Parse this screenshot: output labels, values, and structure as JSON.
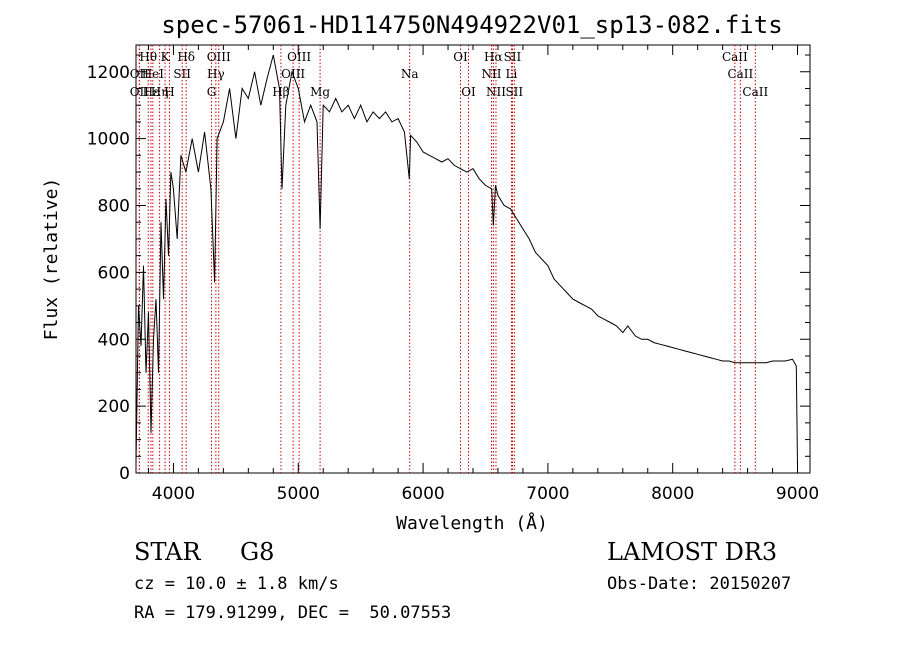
{
  "chart_data": {
    "type": "line",
    "title": "spec-57061-HD114750N494922V01_sp13-082.fits",
    "xlabel": "Wavelength (Å)",
    "ylabel": "Flux (relative)",
    "xlim": [
      3700,
      9100
    ],
    "ylim": [
      0,
      1280
    ],
    "xticks": [
      4000,
      5000,
      6000,
      7000,
      8000,
      9000
    ],
    "yticks": [
      0,
      200,
      400,
      600,
      800,
      1000,
      1200
    ],
    "line_color": "#000000",
    "marker_color": "#cc0000",
    "series": [
      {
        "name": "flux",
        "x": [
          3700,
          3720,
          3740,
          3760,
          3780,
          3800,
          3820,
          3840,
          3860,
          3880,
          3900,
          3920,
          3940,
          3960,
          3980,
          4000,
          4030,
          4060,
          4100,
          4150,
          4200,
          4250,
          4300,
          4330,
          4350,
          4400,
          4450,
          4500,
          4550,
          4600,
          4650,
          4700,
          4750,
          4800,
          4850,
          4870,
          4900,
          4950,
          5000,
          5050,
          5100,
          5150,
          5175,
          5200,
          5250,
          5300,
          5350,
          5400,
          5450,
          5500,
          5550,
          5600,
          5650,
          5700,
          5750,
          5800,
          5850,
          5890,
          5900,
          5950,
          6000,
          6050,
          6100,
          6150,
          6200,
          6250,
          6300,
          6350,
          6400,
          6450,
          6500,
          6550,
          6563,
          6580,
          6600,
          6650,
          6700,
          6750,
          6800,
          6850,
          6900,
          6950,
          7000,
          7050,
          7100,
          7150,
          7200,
          7250,
          7300,
          7350,
          7400,
          7450,
          7500,
          7550,
          7600,
          7640,
          7700,
          7750,
          7800,
          7850,
          7900,
          7950,
          8000,
          8050,
          8100,
          8150,
          8200,
          8250,
          8300,
          8350,
          8400,
          8450,
          8500,
          8550,
          8600,
          8650,
          8700,
          8750,
          8800,
          8850,
          8900,
          8960,
          8990,
          9000
        ],
        "y": [
          30,
          500,
          380,
          620,
          300,
          480,
          120,
          400,
          520,
          300,
          750,
          520,
          820,
          650,
          900,
          850,
          700,
          950,
          900,
          1000,
          900,
          1020,
          850,
          570,
          1000,
          1050,
          1150,
          1000,
          1150,
          1120,
          1200,
          1100,
          1180,
          1250,
          1150,
          850,
          1100,
          1200,
          1150,
          1050,
          1100,
          1050,
          730,
          1100,
          1080,
          1120,
          1080,
          1100,
          1060,
          1100,
          1050,
          1080,
          1060,
          1080,
          1050,
          1060,
          1020,
          880,
          1010,
          990,
          960,
          950,
          940,
          930,
          940,
          920,
          910,
          900,
          910,
          880,
          860,
          850,
          740,
          860,
          830,
          800,
          790,
          760,
          730,
          700,
          660,
          640,
          620,
          580,
          560,
          540,
          520,
          510,
          500,
          490,
          470,
          460,
          450,
          440,
          420,
          440,
          410,
          400,
          400,
          390,
          385,
          380,
          375,
          370,
          365,
          360,
          355,
          350,
          345,
          340,
          335,
          335,
          330,
          330,
          330,
          330,
          330,
          330,
          335,
          335,
          335,
          340,
          320,
          20
        ]
      }
    ],
    "lines": [
      {
        "label": "Hθ",
        "x": 3798,
        "row": 1
      },
      {
        "label": "OII",
        "x": 3727,
        "row": 2
      },
      {
        "label": "OII",
        "x": 3727,
        "row": 3
      },
      {
        "label": "Hε",
        "x": 3820,
        "row": 3
      },
      {
        "label": "Hη",
        "x": 3889,
        "row": 3
      },
      {
        "label": "HeI",
        "x": 3835,
        "row": 2
      },
      {
        "label": "K",
        "x": 3933,
        "row": 1
      },
      {
        "label": "H",
        "x": 3968,
        "row": 3
      },
      {
        "label": "SII",
        "x": 4070,
        "row": 2
      },
      {
        "label": "Hδ",
        "x": 4102,
        "row": 1
      },
      {
        "label": "OIII",
        "x": 4363,
        "row": 1
      },
      {
        "label": "Hγ",
        "x": 4340,
        "row": 2
      },
      {
        "label": "G",
        "x": 4305,
        "row": 3
      },
      {
        "label": "Hβ",
        "x": 4861,
        "row": 3
      },
      {
        "label": "OIII",
        "x": 4959,
        "row": 2
      },
      {
        "label": "OIII",
        "x": 5007,
        "row": 1
      },
      {
        "label": "Mg",
        "x": 5175,
        "row": 3
      },
      {
        "label": "Na",
        "x": 5893,
        "row": 2
      },
      {
        "label": "OI",
        "x": 6300,
        "row": 1
      },
      {
        "label": "OI",
        "x": 6364,
        "row": 3
      },
      {
        "label": "Hα",
        "x": 6563,
        "row": 1
      },
      {
        "label": "NII",
        "x": 6548,
        "row": 2
      },
      {
        "label": "NII",
        "x": 6584,
        "row": 3
      },
      {
        "label": "SII",
        "x": 6716,
        "row": 1
      },
      {
        "label": "Li",
        "x": 6708,
        "row": 2
      },
      {
        "label": "SII",
        "x": 6731,
        "row": 3
      },
      {
        "label": "CaII",
        "x": 8498,
        "row": 1
      },
      {
        "label": "CaII",
        "x": 8542,
        "row": 2
      },
      {
        "label": "CaII",
        "x": 8662,
        "row": 3
      }
    ]
  },
  "info": {
    "object_class": "STAR",
    "subclass": "G8",
    "survey": "LAMOST DR3",
    "cz": "cz = 10.0 ± 1.8 km/s",
    "obs_date": "Obs-Date: 20150207",
    "coords": "RA = 179.91299, DEC =  50.07553"
  }
}
